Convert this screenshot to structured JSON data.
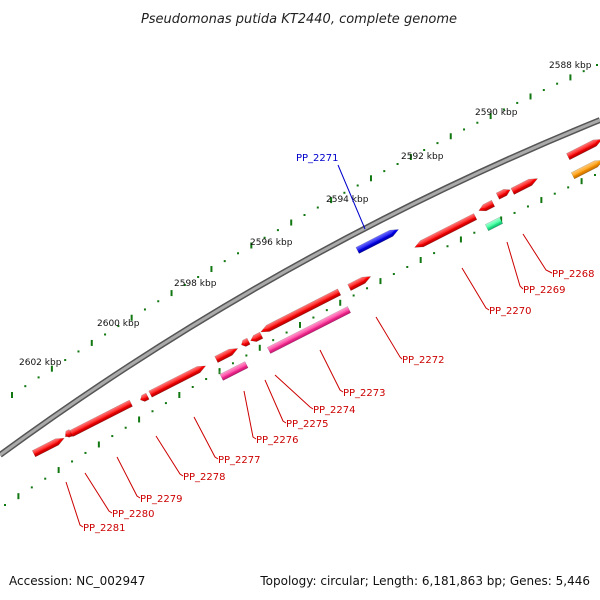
{
  "title": "Pseudomonas putida KT2440, complete genome",
  "accession": "Accession: NC_002947",
  "summary": "Topology: circular; Length: 6,181,863 bp; Genes: 5,446",
  "colors": {
    "backbone": "#888888",
    "red": "#ff0000",
    "blue": "#0000ee",
    "magenta": "#ff3399",
    "teal": "#33ff99",
    "orange": "#ff9900",
    "tick": "#117711",
    "label_red": "#cc0000",
    "label_blue": "#0000cc"
  },
  "ticks": [
    {
      "label": "2588 kbp"
    },
    {
      "label": "2590 kbp"
    },
    {
      "label": "2592 kbp"
    },
    {
      "label": "2594 kbp"
    },
    {
      "label": "2596 kbp"
    },
    {
      "label": "2598 kbp"
    },
    {
      "label": "2600 kbp"
    },
    {
      "label": "2602 kbp"
    }
  ],
  "genes": [
    {
      "label": "PP_2268"
    },
    {
      "label": "PP_2269"
    },
    {
      "label": "PP_2270"
    },
    {
      "label": "PP_2271"
    },
    {
      "label": "PP_2272"
    },
    {
      "label": "PP_2273"
    },
    {
      "label": "PP_2274"
    },
    {
      "label": "PP_2275"
    },
    {
      "label": "PP_2276"
    },
    {
      "label": "PP_2277"
    },
    {
      "label": "PP_2278"
    },
    {
      "label": "PP_2279"
    },
    {
      "label": "PP_2280"
    },
    {
      "label": "PP_2281"
    }
  ]
}
